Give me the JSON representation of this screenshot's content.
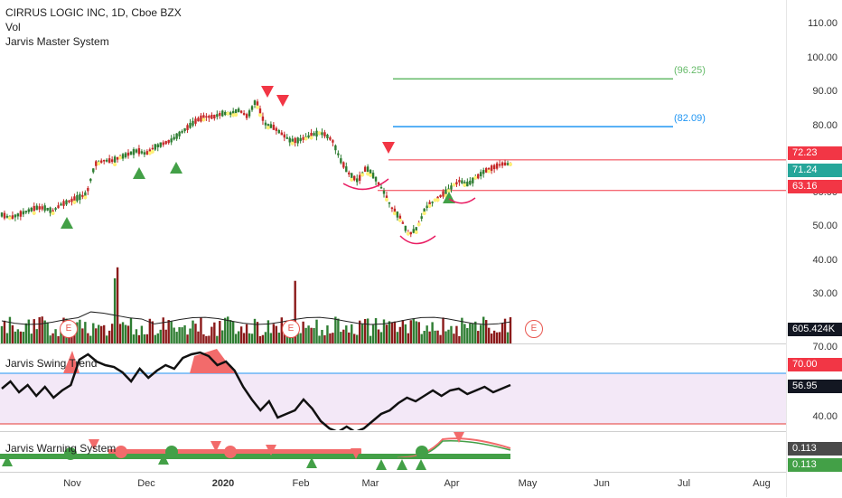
{
  "header": {
    "symbol_line": "CIRRUS LOGIC INC, 1D, Cboe BZX",
    "vol_label": "Vol",
    "system_label": "Jarvis Master System"
  },
  "price_axis": {
    "ticks": [
      "110.00",
      "100.00",
      "90.00",
      "80.00",
      "70.00",
      "60.00",
      "50.00",
      "40.00",
      "30.00"
    ],
    "tags": {
      "upper": {
        "value": "72.23",
        "color": "#f23645"
      },
      "last": {
        "value": "71.24",
        "color": "#26a69a"
      },
      "lower": {
        "value": "63.16",
        "color": "#f23645"
      },
      "volume": {
        "value": "605.424K",
        "color": "#131722"
      }
    }
  },
  "levels": {
    "green_label": "(96.25)",
    "blue_label": "(82.09)",
    "green_color": "#66bb6a",
    "blue_color": "#2196f3",
    "red_color": "#f23645"
  },
  "earnings": [
    "E",
    "E",
    "E"
  ],
  "swing": {
    "label": "Jarvis Swing Trend",
    "ticks": [
      "70.00",
      "40.00"
    ],
    "tags": {
      "upper": {
        "value": "70.00",
        "color": "#f23645"
      },
      "last": {
        "value": "56.95",
        "color": "#131722"
      }
    }
  },
  "warning": {
    "label": "Jarvis Warning System",
    "tags": {
      "a": {
        "value": "0.113",
        "color": "#4a4a4a"
      },
      "b": {
        "value": "0.113",
        "color": "#43a047"
      }
    }
  },
  "time_axis": [
    "Nov",
    "Dec",
    "2020",
    "Feb",
    "Mar",
    "Apr",
    "May",
    "Jun",
    "Jul",
    "Aug"
  ],
  "chart_data": {
    "type": "line",
    "title": "CIRRUS LOGIC INC, 1D, Cboe BZX",
    "x_months": [
      "Nov",
      "Dec",
      "2020",
      "Feb",
      "Mar",
      "Apr",
      "May",
      "Jun",
      "Jul",
      "Aug"
    ],
    "ylim": [
      25,
      115
    ],
    "close_approx": [
      56,
      55,
      56,
      57,
      58,
      58,
      57,
      59,
      60,
      61,
      62,
      71,
      72,
      72,
      73,
      74,
      75,
      74,
      76,
      77,
      78,
      80,
      82,
      84,
      85,
      85,
      86,
      86,
      87,
      85,
      90,
      83,
      82,
      80,
      78,
      78,
      79,
      80,
      80,
      78,
      72,
      68,
      66,
      70,
      67,
      63,
      58,
      55,
      50,
      52,
      58,
      60,
      62,
      64,
      66,
      65,
      67,
      69,
      70,
      71,
      71
    ],
    "levels": [
      96.25,
      82.09,
      72.23,
      63.16
    ],
    "last_price": 71.24
  }
}
